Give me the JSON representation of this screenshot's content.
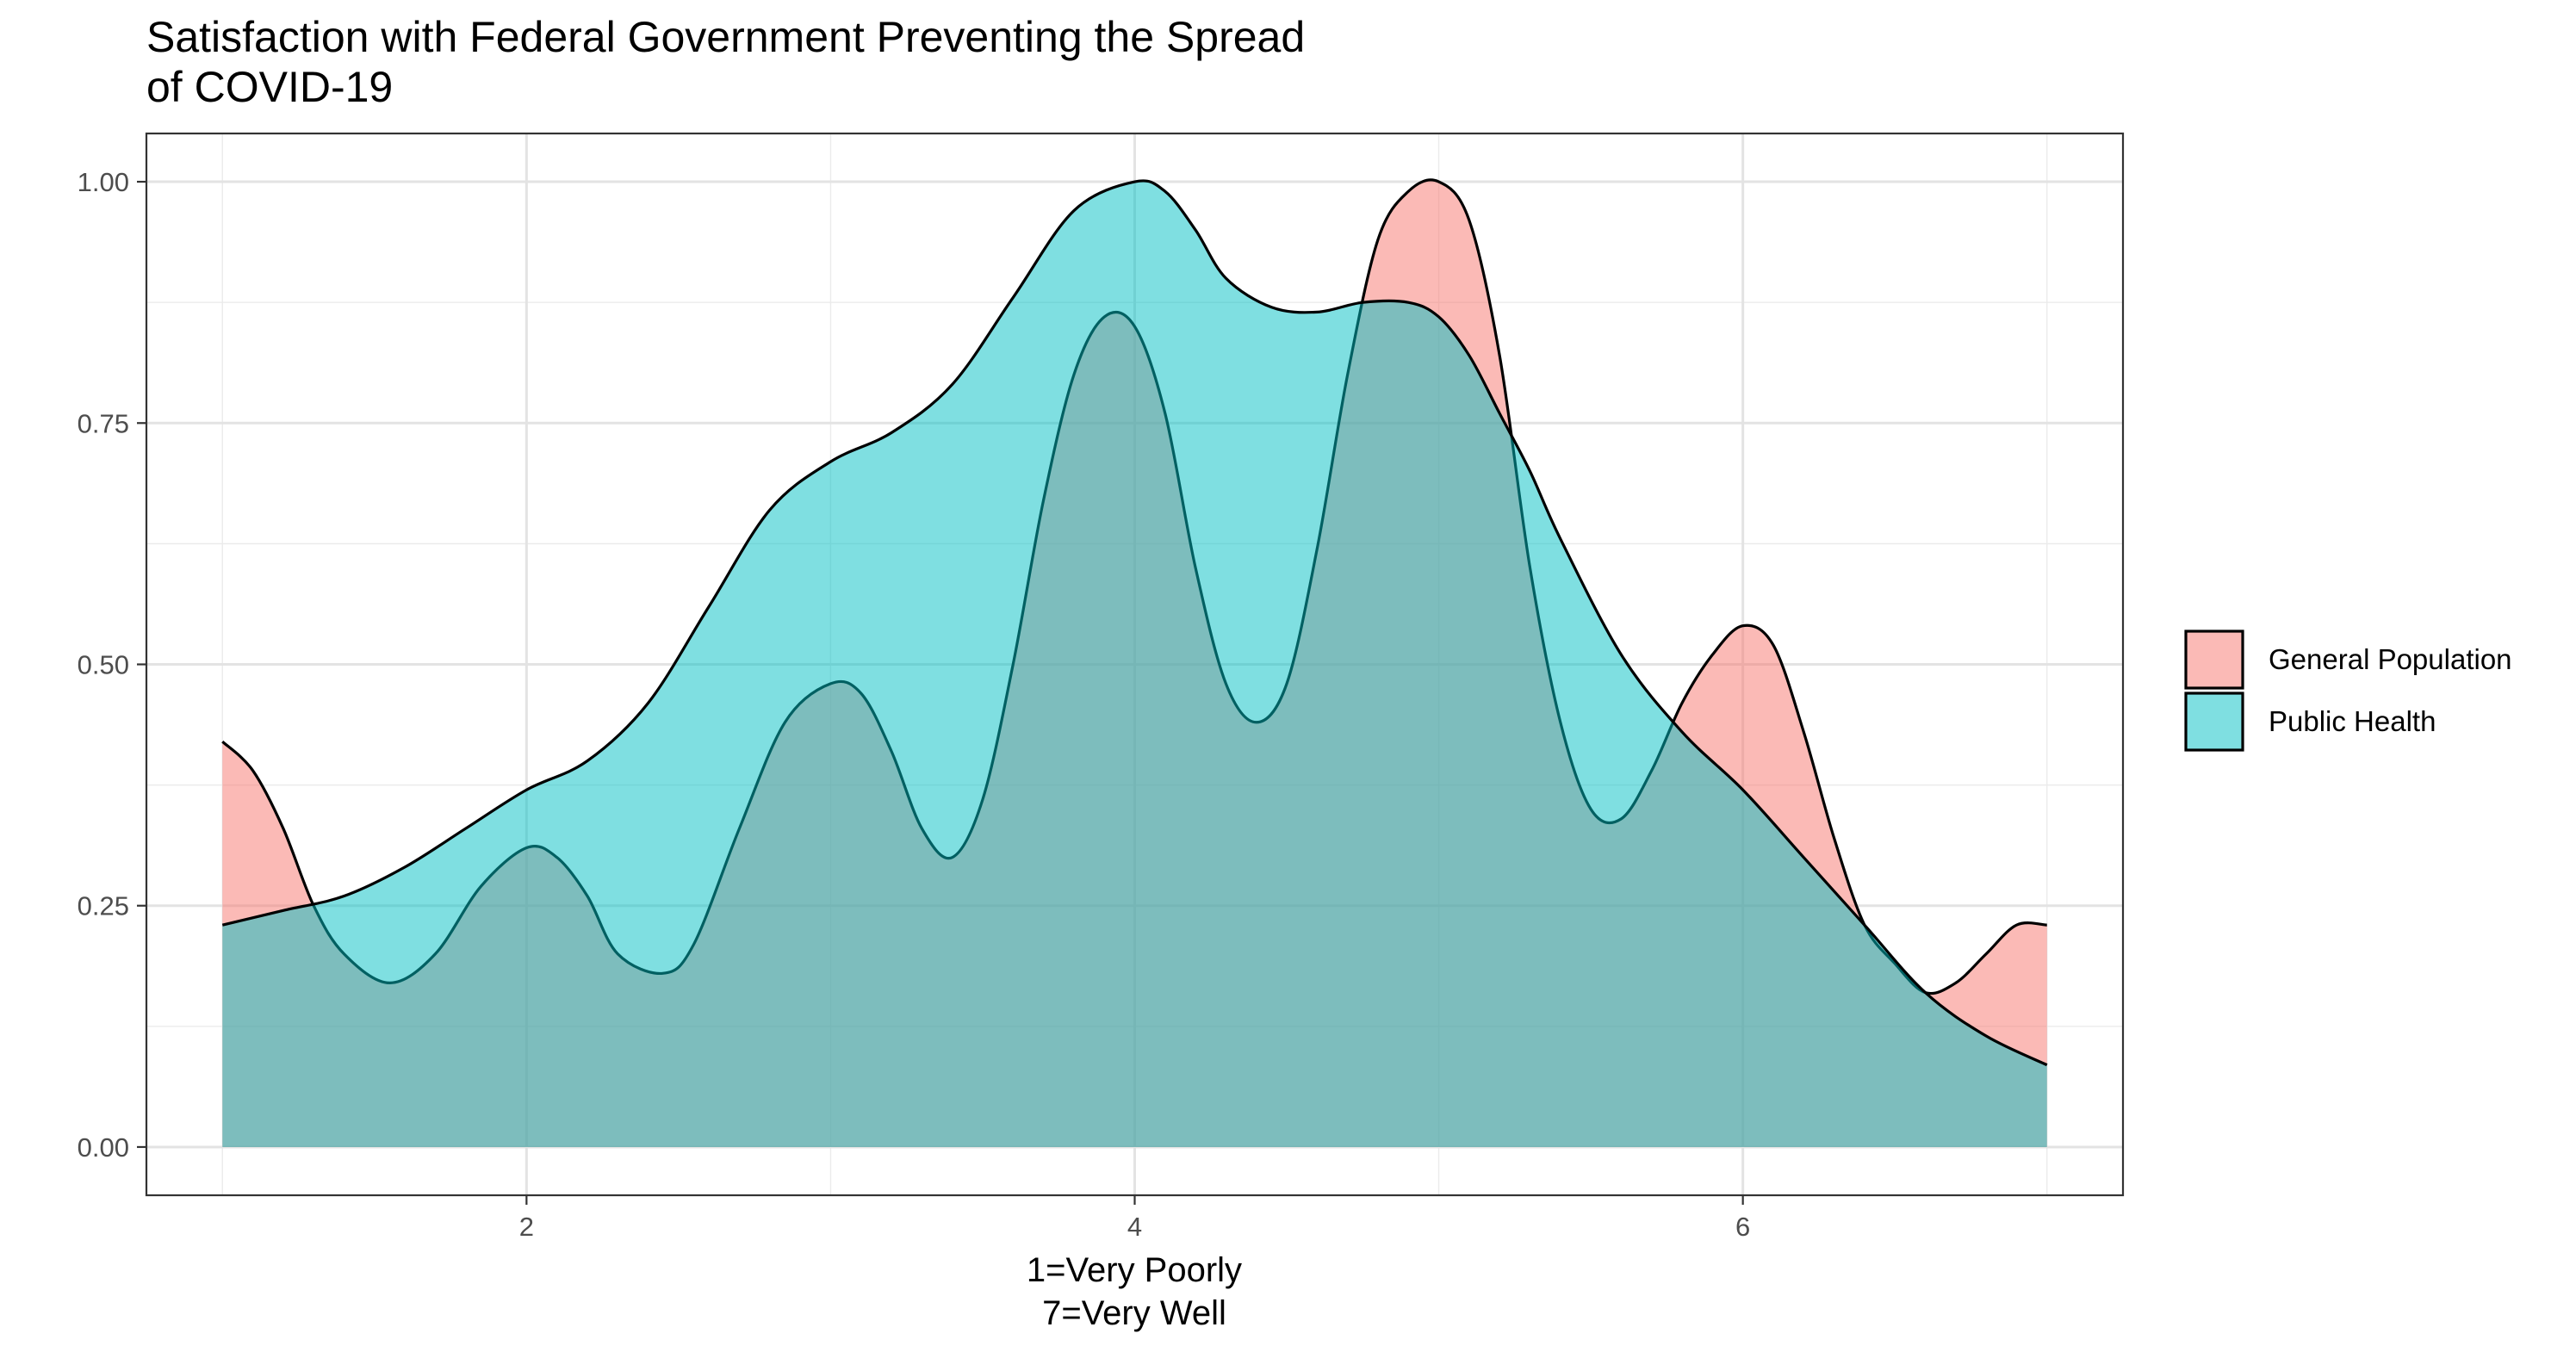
{
  "chart_data": {
    "type": "area",
    "title_lines": [
      "Satisfaction with Federal Government Preventing the Spread",
      "of COVID-19"
    ],
    "xlabel_lines": [
      "1=Very Poorly",
      "7=Very Well"
    ],
    "ylabel": "",
    "xlim": [
      0.75,
      7.25
    ],
    "ylim": [
      -0.05,
      1.05
    ],
    "x_ticks": [
      2,
      4,
      6
    ],
    "x_tick_labels": [
      "2",
      "4",
      "6"
    ],
    "y_ticks": [
      0,
      0.25,
      0.5,
      0.75,
      1
    ],
    "y_tick_labels": [
      "0.00",
      "0.25",
      "0.50",
      "0.75",
      "1.00"
    ],
    "grid": true,
    "legend_position": "right",
    "series": [
      {
        "name": "General Population",
        "color": "#F8766D",
        "x": [
          1.0,
          1.1,
          1.2,
          1.3,
          1.4,
          1.55,
          1.7,
          1.85,
          2.0,
          2.1,
          2.2,
          2.3,
          2.45,
          2.55,
          2.7,
          2.85,
          3.0,
          3.1,
          3.2,
          3.3,
          3.4,
          3.5,
          3.6,
          3.7,
          3.8,
          3.9,
          4.0,
          4.1,
          4.2,
          4.3,
          4.4,
          4.5,
          4.6,
          4.7,
          4.8,
          4.9,
          5.0,
          5.1,
          5.2,
          5.3,
          5.4,
          5.5,
          5.6,
          5.7,
          5.8,
          5.9,
          6.0,
          6.1,
          6.2,
          6.3,
          6.4,
          6.5,
          6.6,
          6.7,
          6.8,
          6.9,
          7.0
        ],
        "y": [
          0.42,
          0.39,
          0.33,
          0.25,
          0.2,
          0.17,
          0.2,
          0.27,
          0.31,
          0.3,
          0.26,
          0.2,
          0.18,
          0.21,
          0.33,
          0.44,
          0.48,
          0.47,
          0.41,
          0.33,
          0.3,
          0.36,
          0.5,
          0.67,
          0.8,
          0.86,
          0.85,
          0.76,
          0.6,
          0.48,
          0.44,
          0.48,
          0.62,
          0.8,
          0.94,
          0.99,
          1.0,
          0.96,
          0.82,
          0.6,
          0.44,
          0.35,
          0.34,
          0.39,
          0.46,
          0.51,
          0.54,
          0.52,
          0.43,
          0.32,
          0.23,
          0.19,
          0.16,
          0.17,
          0.2,
          0.23,
          0.23
        ]
      },
      {
        "name": "Public Health",
        "color": "#00BFC4",
        "x": [
          1.0,
          1.2,
          1.4,
          1.6,
          1.8,
          2.0,
          2.2,
          2.4,
          2.6,
          2.8,
          3.0,
          3.2,
          3.4,
          3.6,
          3.8,
          4.0,
          4.1,
          4.2,
          4.3,
          4.45,
          4.6,
          4.75,
          4.9,
          5.0,
          5.1,
          5.2,
          5.3,
          5.4,
          5.6,
          5.8,
          6.0,
          6.2,
          6.4,
          6.6,
          6.8,
          7.0
        ],
        "y": [
          0.23,
          0.245,
          0.26,
          0.29,
          0.33,
          0.37,
          0.4,
          0.46,
          0.56,
          0.66,
          0.71,
          0.74,
          0.79,
          0.88,
          0.97,
          1.0,
          0.99,
          0.95,
          0.9,
          0.87,
          0.865,
          0.875,
          0.875,
          0.86,
          0.82,
          0.76,
          0.7,
          0.63,
          0.51,
          0.43,
          0.37,
          0.3,
          0.23,
          0.16,
          0.115,
          0.085
        ]
      }
    ]
  }
}
